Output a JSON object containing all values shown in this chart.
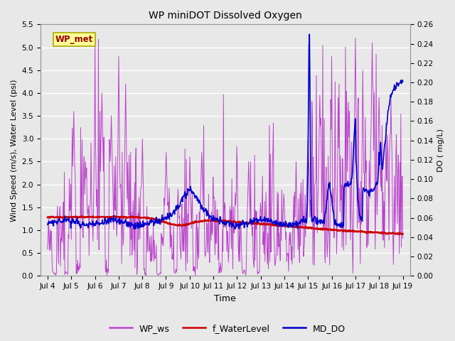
{
  "title": "WP miniDOT Dissolved Oxygen",
  "xlabel": "Time",
  "ylabel_left": "Wind Speed (m/s), Water Level (psi)",
  "ylabel_right": "DO ( mg/L)",
  "ylim_left": [
    0.0,
    5.5
  ],
  "ylim_right": [
    0.0,
    0.26
  ],
  "yticks_left": [
    0.0,
    0.5,
    1.0,
    1.5,
    2.0,
    2.5,
    3.0,
    3.5,
    4.0,
    4.5,
    5.0,
    5.5
  ],
  "yticks_right": [
    0.0,
    0.02,
    0.04,
    0.06,
    0.08,
    0.1,
    0.12,
    0.14,
    0.16,
    0.18,
    0.2,
    0.22,
    0.24,
    0.26
  ],
  "xtick_labels": [
    "Jul 4",
    "Jul 5",
    "Jul 6",
    "Jul 7",
    "Jul 8",
    "Jul 9",
    "Jul 10",
    "Jul 11",
    "Jul 12",
    "Jul 13",
    "Jul 14",
    "Jul 15",
    "Jul 16",
    "Jul 17",
    "Jul 18",
    "Jul 19"
  ],
  "legend_labels": [
    "WP_ws",
    "f_WaterLevel",
    "MD_DO"
  ],
  "color_ws": "#BB44CC",
  "color_wl": "#CC0000",
  "color_do": "#0000CC",
  "wp_met_box_facecolor": "#FFFF99",
  "wp_met_text_color": "#990000",
  "wp_met_edge_color": "#AAAA00",
  "fig_facecolor": "#E8E8E8",
  "plot_facecolor": "#E8E8E8",
  "grid_color": "#FFFFFF",
  "seed": 7,
  "n_points": 720,
  "x_start": 4.0,
  "x_end": 19.0,
  "xlim": [
    3.7,
    19.3
  ]
}
